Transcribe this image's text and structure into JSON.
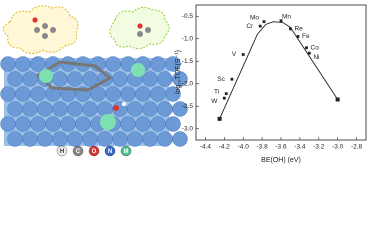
{
  "chart_data": {
    "type": "line",
    "xlabel": "BE(OH) (eV)",
    "ylabel": "log₁₀TOF(S⁻¹)",
    "xlim": [
      -4.5,
      -2.7
    ],
    "xticks": [
      -4.4,
      -4.2,
      {
        "value": -4,
        "label": "-4.0"
      },
      -3.8,
      -3.6,
      -3.4,
      -3.2,
      {
        "value": -3,
        "label": "-3.0"
      },
      -2.8
    ],
    "ylim": [
      -3.25,
      -0.25
    ],
    "yticks": [
      {
        "value": -3,
        "label": "-3.0"
      },
      -2.5,
      {
        "value": -2,
        "label": "-2.0"
      },
      -1.5,
      {
        "value": -1,
        "label": "-1.0"
      },
      -0.5
    ],
    "series": [
      {
        "color": "#222222",
        "x": [
          -4.25,
          -3.85,
          -3.76,
          -3.68,
          -3.58,
          -3.5,
          -3.0
        ],
        "values": [
          -2.78,
          -0.9,
          -0.68,
          -0.62,
          -0.64,
          -0.75,
          -2.35
        ]
      },
      {
        "color": "#222222",
        "x": [
          -4.2,
          -4.18,
          -4.12,
          -4.0,
          -3.82,
          -3.78,
          -3.6,
          -3.5,
          -3.42,
          -3.33,
          -3.3
        ],
        "values": [
          -2.32,
          -2.22,
          -1.9,
          -1.35,
          -0.72,
          -0.62,
          -0.6,
          -0.78,
          -0.95,
          -1.2,
          -1.32
        ],
        "point_labels": [
          "W",
          "Ti",
          "Sc",
          "V",
          "Cr",
          "Mo",
          "Mn",
          "Re",
          "Fe",
          "Co",
          "Ni"
        ]
      }
    ]
  },
  "illustration": {
    "legend": [
      "H",
      "C",
      "O",
      "N",
      "M"
    ]
  }
}
